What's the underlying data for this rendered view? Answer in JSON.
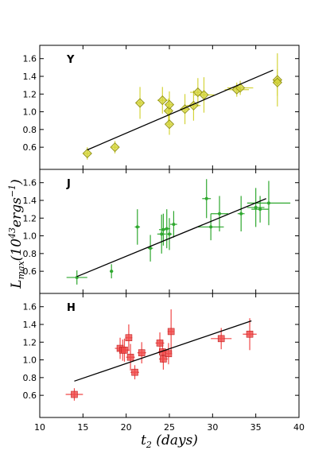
{
  "chart_data": {
    "type": "scatter",
    "xlabel": "t_2 (days)",
    "ylabel": "L_max (10^43 ergs^-1)",
    "xlim": [
      10,
      40
    ],
    "x_ticks": [
      10,
      15,
      20,
      25,
      30,
      35,
      40
    ],
    "panels": [
      {
        "label": "Y",
        "color": "#d4d43a",
        "marker": "diamond",
        "ylim": [
          0.35,
          1.75
        ],
        "y_ticks": [
          0.6,
          0.8,
          1.0,
          1.2,
          1.4,
          1.6
        ],
        "points": [
          {
            "x": 15.5,
            "y": 0.53,
            "xerr": 0.5,
            "yerr": 0.07
          },
          {
            "x": 18.7,
            "y": 0.6,
            "xerr": 0.4,
            "yerr": 0.07
          },
          {
            "x": 21.6,
            "y": 1.1,
            "xerr": 0.5,
            "yerr": 0.18
          },
          {
            "x": 24.2,
            "y": 1.13,
            "xerr": 0.6,
            "yerr": 0.15
          },
          {
            "x": 24.9,
            "y": 1.01,
            "xerr": 0.4,
            "yerr": 0.14
          },
          {
            "x": 25.0,
            "y": 1.08,
            "xerr": 0.4,
            "yerr": 0.15
          },
          {
            "x": 25.0,
            "y": 0.86,
            "xerr": 0.3,
            "yerr": 0.12
          },
          {
            "x": 26.8,
            "y": 1.03,
            "xerr": 0.6,
            "yerr": 0.17
          },
          {
            "x": 27.8,
            "y": 1.07,
            "xerr": 0.8,
            "yerr": 0.17
          },
          {
            "x": 28.3,
            "y": 1.22,
            "xerr": 0.9,
            "yerr": 0.16
          },
          {
            "x": 29.0,
            "y": 1.19,
            "xerr": 1.2,
            "yerr": 0.2
          },
          {
            "x": 32.8,
            "y": 1.25,
            "xerr": 1.4,
            "yerr": 0.08
          },
          {
            "x": 33.2,
            "y": 1.27,
            "xerr": 1.5,
            "yerr": 0.08
          },
          {
            "x": 37.5,
            "y": 1.36,
            "xerr": 0.5,
            "yerr": 0.3
          },
          {
            "x": 37.5,
            "y": 1.33,
            "xerr": 0.5,
            "yerr": 0.15
          }
        ],
        "fit": [
          [
            15.5,
            0.57
          ],
          [
            37.0,
            1.47
          ]
        ]
      },
      {
        "label": "J",
        "color": "#2fa82f",
        "marker": "dot",
        "ylim": [
          0.35,
          1.75
        ],
        "y_ticks": [
          0.6,
          0.8,
          1.0,
          1.2,
          1.4,
          1.6
        ],
        "points": [
          {
            "x": 14.3,
            "y": 0.53,
            "xerr": 1.2,
            "yerr": 0.08
          },
          {
            "x": 18.3,
            "y": 0.6,
            "xerr": 0.2,
            "yerr": 0.08
          },
          {
            "x": 21.3,
            "y": 1.1,
            "xerr": 0.3,
            "yerr": 0.2
          },
          {
            "x": 22.8,
            "y": 0.86,
            "xerr": 0.3,
            "yerr": 0.15
          },
          {
            "x": 24.1,
            "y": 1.02,
            "xerr": 0.5,
            "yerr": 0.22
          },
          {
            "x": 24.3,
            "y": 1.07,
            "xerr": 0.5,
            "yerr": 0.18
          },
          {
            "x": 24.7,
            "y": 1.08,
            "xerr": 0.4,
            "yerr": 0.22
          },
          {
            "x": 25.0,
            "y": 1.02,
            "xerr": 0.3,
            "yerr": 0.18
          },
          {
            "x": 25.5,
            "y": 1.13,
            "xerr": 0.4,
            "yerr": 0.15
          },
          {
            "x": 29.3,
            "y": 1.42,
            "xerr": 0.5,
            "yerr": 0.22
          },
          {
            "x": 29.8,
            "y": 1.1,
            "xerr": 1.5,
            "yerr": 0.15
          },
          {
            "x": 30.8,
            "y": 1.25,
            "xerr": 1.0,
            "yerr": 0.2
          },
          {
            "x": 33.3,
            "y": 1.25,
            "xerr": 0.4,
            "yerr": 0.2
          },
          {
            "x": 35.0,
            "y": 1.32,
            "xerr": 1.0,
            "yerr": 0.22
          },
          {
            "x": 35.5,
            "y": 1.3,
            "xerr": 1.0,
            "yerr": 0.15
          },
          {
            "x": 36.5,
            "y": 1.37,
            "xerr": 2.5,
            "yerr": 0.25
          }
        ],
        "fit": [
          [
            14.3,
            0.54
          ],
          [
            36.2,
            1.42
          ]
        ]
      },
      {
        "label": "H",
        "color": "#f04848",
        "marker": "square",
        "ylim": [
          0.35,
          1.75
        ],
        "y_ticks": [
          0.6,
          0.8,
          1.0,
          1.2,
          1.4,
          1.6
        ],
        "points": [
          {
            "x": 14.0,
            "y": 0.61,
            "xerr": 1.0,
            "yerr": 0.07
          },
          {
            "x": 19.3,
            "y": 1.13,
            "xerr": 0.6,
            "yerr": 0.12
          },
          {
            "x": 19.6,
            "y": 1.11,
            "xerr": 0.6,
            "yerr": 0.12
          },
          {
            "x": 19.8,
            "y": 1.11,
            "xerr": 0.6,
            "yerr": 0.13
          },
          {
            "x": 20.3,
            "y": 1.25,
            "xerr": 0.4,
            "yerr": 0.15
          },
          {
            "x": 20.5,
            "y": 1.03,
            "xerr": 0.5,
            "yerr": 0.15
          },
          {
            "x": 21.0,
            "y": 0.86,
            "xerr": 0.5,
            "yerr": 0.08
          },
          {
            "x": 21.8,
            "y": 1.08,
            "xerr": 0.5,
            "yerr": 0.12
          },
          {
            "x": 23.9,
            "y": 1.19,
            "xerr": 0.5,
            "yerr": 0.12
          },
          {
            "x": 24.2,
            "y": 1.09,
            "xerr": 0.5,
            "yerr": 0.12
          },
          {
            "x": 24.3,
            "y": 1.01,
            "xerr": 0.5,
            "yerr": 0.12
          },
          {
            "x": 24.9,
            "y": 1.07,
            "xerr": 0.4,
            "yerr": 0.12
          },
          {
            "x": 25.2,
            "y": 1.32,
            "xerr": 0.4,
            "yerr": 0.25
          },
          {
            "x": 31.0,
            "y": 1.24,
            "xerr": 1.2,
            "yerr": 0.12
          },
          {
            "x": 34.3,
            "y": 1.29,
            "xerr": 0.8,
            "yerr": 0.18
          }
        ],
        "fit": [
          [
            14.0,
            0.76
          ],
          [
            34.5,
            1.44
          ]
        ]
      }
    ]
  }
}
